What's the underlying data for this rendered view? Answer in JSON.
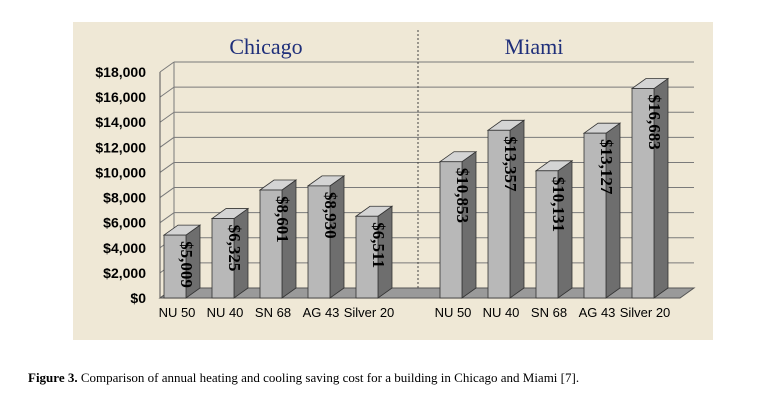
{
  "chart_data": {
    "type": "bar",
    "style": "3d",
    "ylabel": "",
    "xlabel": "",
    "ylim": [
      0,
      18000
    ],
    "ytick_step": 2000,
    "ytick_labels": [
      "$0",
      "$2,000",
      "$4,000",
      "$6,000",
      "$8,000",
      "$10,000",
      "$12,000",
      "$14,000",
      "$16,000",
      "$18,000"
    ],
    "grid": true,
    "groups": [
      {
        "title": "Chicago",
        "categories": [
          "NU 50",
          "NU 40",
          "SN 68",
          "AG 43",
          "Silver 20"
        ],
        "values": [
          5009,
          6325,
          8601,
          8930,
          6511
        ],
        "value_labels": [
          "$5,009",
          "$6,325",
          "$8,601",
          "$8,930",
          "$6,511"
        ]
      },
      {
        "title": "Miami",
        "categories": [
          "NU 50",
          "NU 40",
          "SN 68",
          "AG 43",
          "Silver 20"
        ],
        "values": [
          10853,
          13357,
          10131,
          13127,
          16683
        ],
        "value_labels": [
          "$10,853",
          "$13,357",
          "$10,131",
          "$13,127",
          "$16,683"
        ]
      }
    ],
    "colors": {
      "title": "#1f2f7a",
      "bar_front": "#b8b8b8",
      "bar_side": "#6e6e6e",
      "bar_top": "#d4d4d4",
      "grid": "#7a7a7a",
      "background": "#efe8d6"
    }
  },
  "caption": {
    "label": "Figure 3.",
    "text": " Comparison of annual heating and cooling saving cost for a building in Chicago and Miami [7]."
  }
}
